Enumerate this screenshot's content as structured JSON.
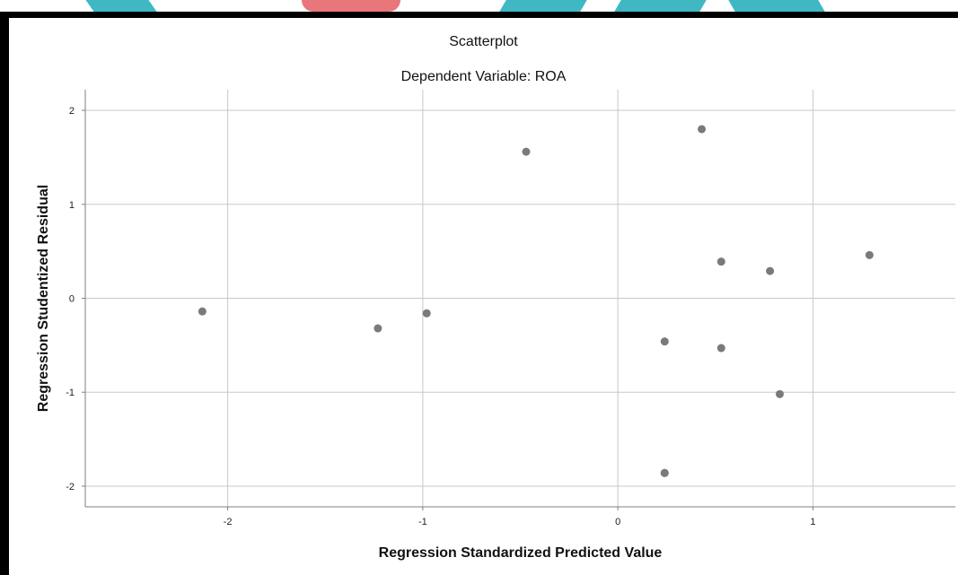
{
  "colors": {
    "background": "#ffffff",
    "frame": "#000000",
    "grid": "#c8c8c8",
    "axis": "#7f7f7f",
    "point": "#7a7a7a",
    "watermark_teal": "#3fb8c4",
    "watermark_red": "#e8767a"
  },
  "chart_data": {
    "type": "scatter",
    "title": "Scatterplot",
    "subtitle": "Dependent Variable: ROA",
    "xlabel": "Regression Standardized Predicted Value",
    "ylabel": "Regression Studentized Residual",
    "xlim": [
      -2.73,
      1.73
    ],
    "ylim": [
      -2.22,
      2.22
    ],
    "xticks": [
      -2,
      -1,
      0,
      1
    ],
    "yticks": [
      -2,
      -1,
      0,
      1,
      2
    ],
    "grid": true,
    "series": [
      {
        "x": [
          -2.13,
          -1.23,
          -0.98,
          -0.47,
          0.24,
          0.43,
          0.24,
          0.53,
          0.53,
          0.78,
          0.83,
          1.29,
          0.24
        ],
        "y": [
          -0.14,
          -0.32,
          -0.16,
          1.56,
          -0.46,
          1.8,
          -1.86,
          0.39,
          -0.53,
          0.29,
          -1.02,
          0.46,
          -1.86
        ]
      }
    ]
  }
}
